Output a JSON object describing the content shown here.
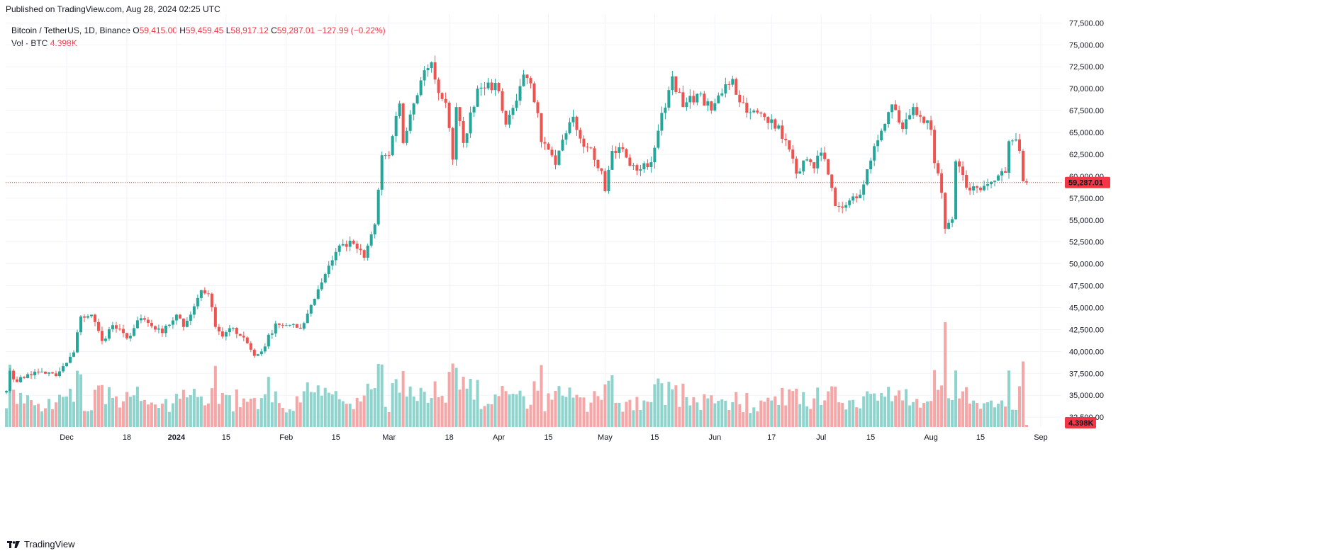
{
  "header": {
    "published": "Published on TradingView.com, Aug 28, 2024 02:25 UTC"
  },
  "legend": {
    "symbol": "Bitcoin / TetherUS, 1D, Binance",
    "o_label": "O",
    "o_value": "59,415.00",
    "h_label": "H",
    "h_value": "59,459.45",
    "l_label": "L",
    "l_value": "58,917.12",
    "c_label": "C",
    "c_value": "59,287.01",
    "change": "−127.99 (−0.22%)",
    "vol_label": "Vol · BTC",
    "vol_value": "4.398K"
  },
  "brand": {
    "name": "TradingView",
    "icon": "tradingview-logo-icon"
  },
  "colors": {
    "up": "#26a69a",
    "down": "#ef5350",
    "vol_up": "#8fd3cd",
    "vol_down": "#f5a6a6",
    "grid": "#f0f3fa",
    "last_price": "#f23645"
  },
  "chart_data": {
    "type": "candlestick",
    "symbol": "BTCUSDT",
    "interval": "1D",
    "x_tick_labels": [
      "Dec",
      "18",
      "2024",
      "15",
      "Feb",
      "15",
      "Mar",
      "18",
      "Apr",
      "15",
      "May",
      "15",
      "Jun",
      "17",
      "Jul",
      "15",
      "Aug",
      "15",
      "Sep"
    ],
    "y_tick_labels": [
      "32,500.00",
      "35,000.00",
      "37,500.00",
      "40,000.00",
      "42,500.00",
      "45,000.00",
      "47,500.00",
      "50,000.00",
      "52,500.00",
      "55,000.00",
      "57,500.00",
      "60,000.00",
      "62,500.00",
      "65,000.00",
      "67,500.00",
      "70,000.00",
      "72,500.00",
      "75,000.00",
      "77,500.00"
    ],
    "y_ticks": [
      32500,
      35000,
      37500,
      40000,
      42500,
      45000,
      47500,
      50000,
      52500,
      55000,
      57500,
      60000,
      62500,
      65000,
      67500,
      70000,
      72500,
      75000,
      77500
    ],
    "ylim": [
      31300,
      78500
    ],
    "last_price": 59287.01,
    "last_price_label": "59,287.01",
    "last_volume_label": "4.398K",
    "x_tick_dates": [
      "2023-12-01",
      "2023-12-18",
      "2024-01-01",
      "2024-01-15",
      "2024-02-01",
      "2024-02-15",
      "2024-03-01",
      "2024-03-18",
      "2024-04-01",
      "2024-04-15",
      "2024-05-01",
      "2024-05-15",
      "2024-06-01",
      "2024-06-17",
      "2024-07-01",
      "2024-07-15",
      "2024-08-01",
      "2024-08-15",
      "2024-09-01"
    ],
    "anchors": [
      [
        "2023-11-14",
        35500
      ],
      [
        "2023-11-15",
        37800
      ],
      [
        "2023-11-17",
        36500
      ],
      [
        "2023-11-20",
        37400
      ],
      [
        "2023-11-24",
        37700
      ],
      [
        "2023-11-28",
        37200
      ],
      [
        "2023-12-01",
        38700
      ],
      [
        "2023-12-03",
        39900
      ],
      [
        "2023-12-05",
        44000
      ],
      [
        "2023-12-08",
        44200
      ],
      [
        "2023-12-11",
        41200
      ],
      [
        "2023-12-14",
        43000
      ],
      [
        "2023-12-18",
        41500
      ],
      [
        "2023-12-22",
        43800
      ],
      [
        "2023-12-26",
        42500
      ],
      [
        "2023-12-28",
        42100
      ],
      [
        "2024-01-01",
        44200
      ],
      [
        "2024-01-03",
        42800
      ],
      [
        "2024-01-08",
        47000
      ],
      [
        "2024-01-10",
        46600
      ],
      [
        "2024-01-12",
        42800
      ],
      [
        "2024-01-14",
        41700
      ],
      [
        "2024-01-17",
        42700
      ],
      [
        "2024-01-20",
        41600
      ],
      [
        "2024-01-23",
        39500
      ],
      [
        "2024-01-25",
        40000
      ],
      [
        "2024-01-29",
        43200
      ],
      [
        "2024-02-01",
        43000
      ],
      [
        "2024-02-05",
        42600
      ],
      [
        "2024-02-08",
        45300
      ],
      [
        "2024-02-10",
        47100
      ],
      [
        "2024-02-13",
        49800
      ],
      [
        "2024-02-16",
        52100
      ],
      [
        "2024-02-20",
        52300
      ],
      [
        "2024-02-23",
        50700
      ],
      [
        "2024-02-26",
        54500
      ],
      [
        "2024-02-28",
        62400
      ],
      [
        "2024-03-01",
        62400
      ],
      [
        "2024-03-04",
        68300
      ],
      [
        "2024-03-05",
        63800
      ],
      [
        "2024-03-08",
        68300
      ],
      [
        "2024-03-11",
        72100
      ],
      [
        "2024-03-13",
        73000
      ],
      [
        "2024-03-15",
        69500
      ],
      [
        "2024-03-17",
        68400
      ],
      [
        "2024-03-19",
        61900
      ],
      [
        "2024-03-20",
        67900
      ],
      [
        "2024-03-22",
        63800
      ],
      [
        "2024-03-26",
        70000
      ],
      [
        "2024-03-29",
        70700
      ],
      [
        "2024-04-01",
        69700
      ],
      [
        "2024-04-03",
        65900
      ],
      [
        "2024-04-05",
        67800
      ],
      [
        "2024-04-08",
        71600
      ],
      [
        "2024-04-10",
        70600
      ],
      [
        "2024-04-12",
        67200
      ],
      [
        "2024-04-13",
        63900
      ],
      [
        "2024-04-17",
        61300
      ],
      [
        "2024-04-20",
        64900
      ],
      [
        "2024-04-22",
        66800
      ],
      [
        "2024-04-24",
        64300
      ],
      [
        "2024-04-27",
        63200
      ],
      [
        "2024-04-30",
        60600
      ],
      [
        "2024-05-01",
        58300
      ],
      [
        "2024-05-03",
        62900
      ],
      [
        "2024-05-06",
        63100
      ],
      [
        "2024-05-08",
        61200
      ],
      [
        "2024-05-11",
        60800
      ],
      [
        "2024-05-14",
        61600
      ],
      [
        "2024-05-16",
        65200
      ],
      [
        "2024-05-20",
        71400
      ],
      [
        "2024-05-23",
        67900
      ],
      [
        "2024-05-27",
        69400
      ],
      [
        "2024-05-31",
        67500
      ],
      [
        "2024-06-04",
        70500
      ],
      [
        "2024-06-06",
        71100
      ],
      [
        "2024-06-07",
        69300
      ],
      [
        "2024-06-11",
        67300
      ],
      [
        "2024-06-17",
        66500
      ],
      [
        "2024-06-21",
        64100
      ],
      [
        "2024-06-24",
        60300
      ],
      [
        "2024-06-26",
        61800
      ],
      [
        "2024-06-29",
        60900
      ],
      [
        "2024-07-01",
        62700
      ],
      [
        "2024-07-03",
        60200
      ],
      [
        "2024-07-05",
        56600
      ],
      [
        "2024-07-08",
        56700
      ],
      [
        "2024-07-12",
        57900
      ],
      [
        "2024-07-14",
        60800
      ],
      [
        "2024-07-17",
        64100
      ],
      [
        "2024-07-21",
        68200
      ],
      [
        "2024-07-24",
        65400
      ],
      [
        "2024-07-27",
        67900
      ],
      [
        "2024-07-29",
        66800
      ],
      [
        "2024-08-01",
        65300
      ],
      [
        "2024-08-02",
        61500
      ],
      [
        "2024-08-04",
        58100
      ],
      [
        "2024-08-05",
        54000
      ],
      [
        "2024-08-07",
        55100
      ],
      [
        "2024-08-08",
        61700
      ],
      [
        "2024-08-11",
        58700
      ],
      [
        "2024-08-14",
        58700
      ],
      [
        "2024-08-16",
        58900
      ],
      [
        "2024-08-19",
        59500
      ],
      [
        "2024-08-22",
        60400
      ],
      [
        "2024-08-23",
        64000
      ],
      [
        "2024-08-25",
        64200
      ],
      [
        "2024-08-26",
        62900
      ],
      [
        "2024-08-27",
        59415
      ],
      [
        "2024-08-28",
        59287.01
      ]
    ]
  }
}
